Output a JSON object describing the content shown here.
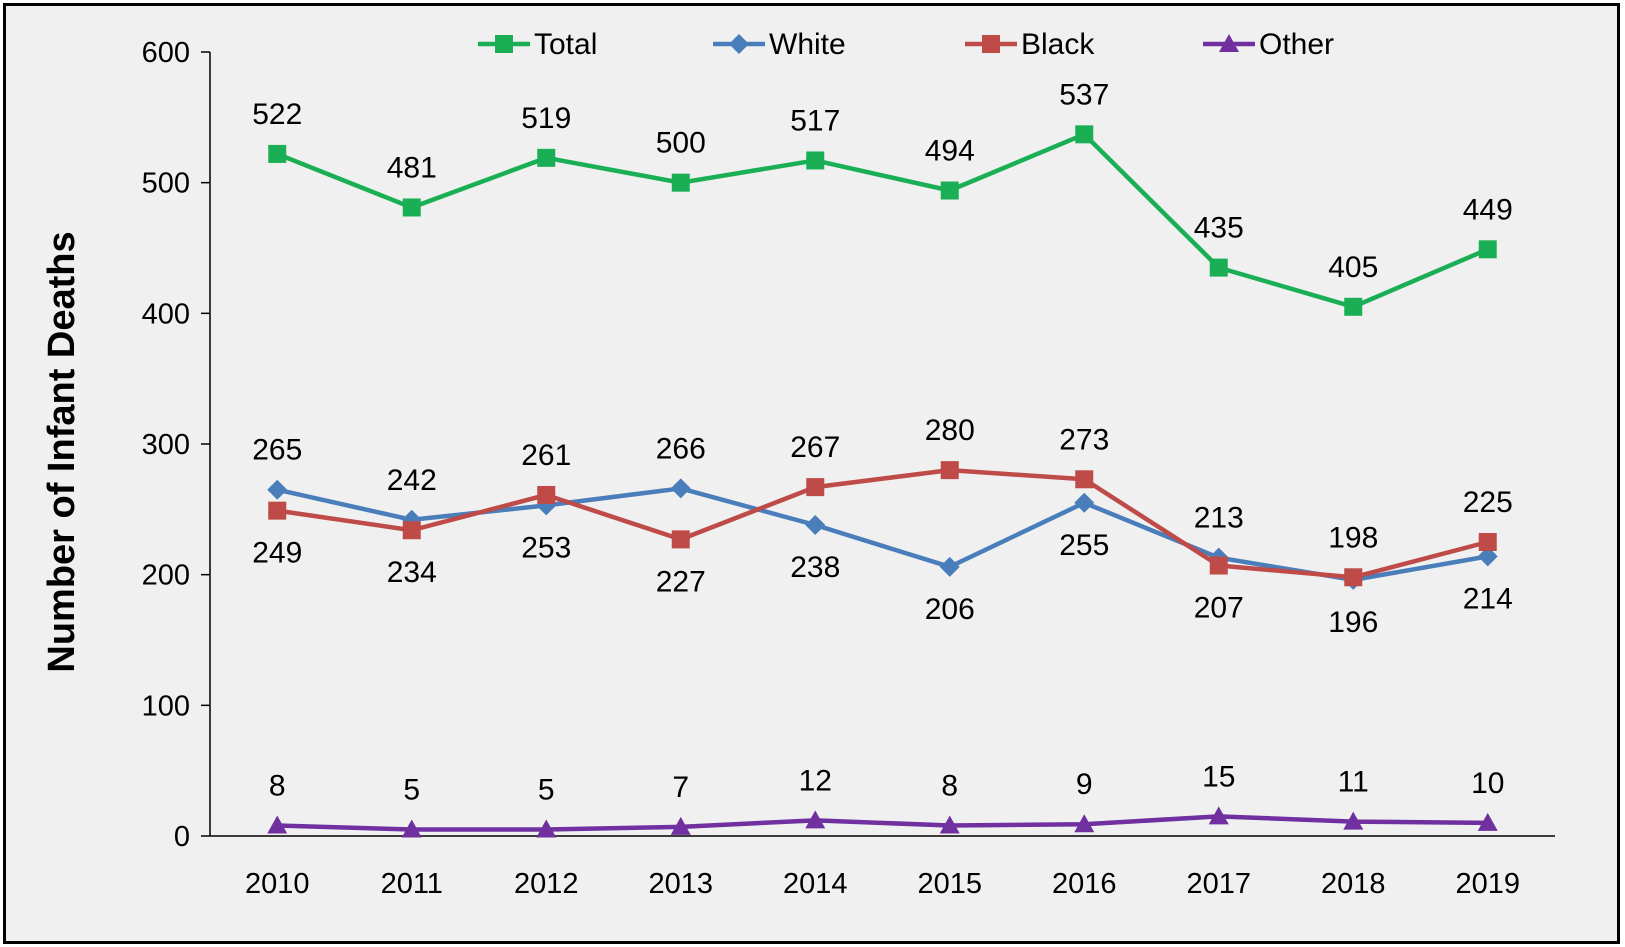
{
  "chart_data": {
    "type": "line",
    "title": "",
    "xlabel": "",
    "ylabel": "Number of Infant Deaths",
    "x": [
      "2010",
      "2011",
      "2012",
      "2013",
      "2014",
      "2015",
      "2016",
      "2017",
      "2018",
      "2019"
    ],
    "ylim": [
      0,
      600
    ],
    "yticks": [
      "0",
      "100",
      "200",
      "300",
      "400",
      "500",
      "600"
    ],
    "grid": false,
    "legend_position": "top",
    "series": [
      {
        "name": "Total",
        "color": "#1aaf54",
        "marker": "square",
        "values": [
          522,
          481,
          519,
          500,
          517,
          494,
          537,
          435,
          405,
          449
        ]
      },
      {
        "name": "White",
        "color": "#4a7ebb",
        "marker": "diamond",
        "values": [
          265,
          242,
          253,
          266,
          238,
          206,
          255,
          213,
          196,
          214
        ]
      },
      {
        "name": "Black",
        "color": "#be4b48",
        "marker": "square",
        "values": [
          249,
          234,
          261,
          227,
          267,
          280,
          273,
          207,
          198,
          225
        ]
      },
      {
        "name": "Other",
        "color": "#7030a0",
        "marker": "triangle",
        "values": [
          8,
          5,
          5,
          7,
          12,
          8,
          9,
          15,
          11,
          10
        ]
      }
    ]
  }
}
